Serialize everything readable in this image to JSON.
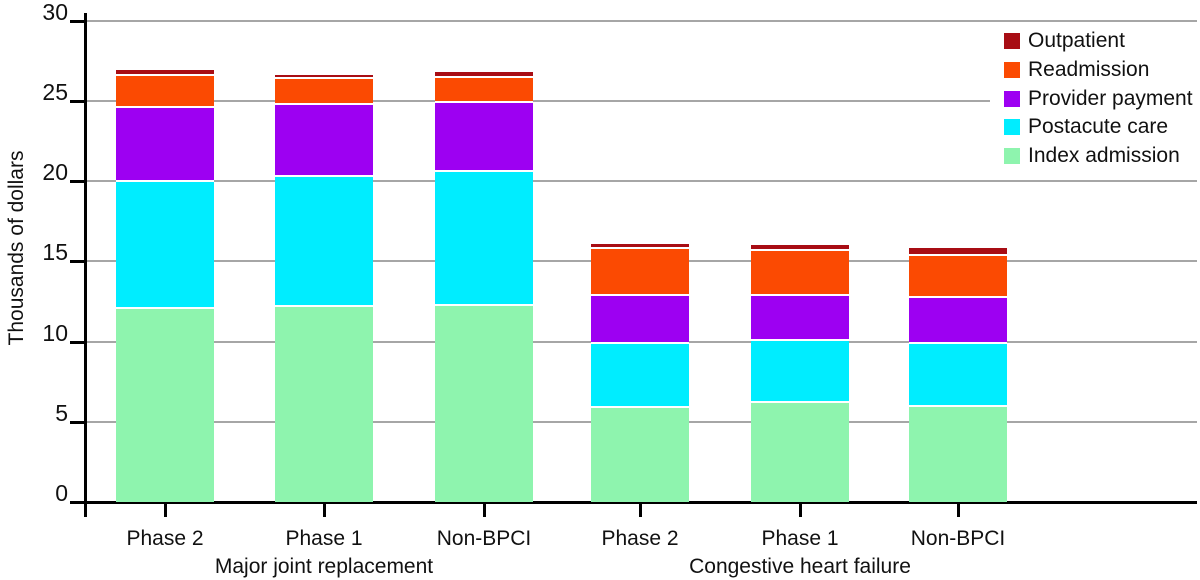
{
  "chart_data": {
    "type": "bar",
    "stacked": true,
    "title": "",
    "ylabel": "Thousands of dollars",
    "ylim": [
      0,
      30
    ],
    "yticks": [
      0,
      5,
      10,
      15,
      20,
      25,
      30
    ],
    "grid": true,
    "legend_position": "top-right",
    "stack_order_bottom_to_top": [
      "Index admission",
      "Postacute care",
      "Provider payment",
      "Readmission",
      "Outpatient"
    ],
    "legend": [
      {
        "label": "Outpatient",
        "color": "#a80d14"
      },
      {
        "label": "Readmission",
        "color": "#fb4a02"
      },
      {
        "label": "Provider payment",
        "color": "#9d00f2"
      },
      {
        "label": "Postacute care",
        "color": "#00edff"
      },
      {
        "label": "Index admission",
        "color": "#8ef4ae"
      }
    ],
    "groups": [
      {
        "label": "Major joint replacement",
        "bars": [
          {
            "label": "Phase 2",
            "values": {
              "Index admission": 12.1,
              "Postacute care": 7.9,
              "Provider payment": 4.6,
              "Readmission": 2.0,
              "Outpatient": 0.3
            }
          },
          {
            "label": "Phase 1",
            "values": {
              "Index admission": 12.2,
              "Postacute care": 8.1,
              "Provider payment": 4.5,
              "Readmission": 1.6,
              "Outpatient": 0.2
            }
          },
          {
            "label": "Non-BPCI",
            "values": {
              "Index admission": 12.3,
              "Postacute care": 8.3,
              "Provider payment": 4.3,
              "Readmission": 1.6,
              "Outpatient": 0.3
            }
          }
        ]
      },
      {
        "label": "Congestive heart failure",
        "bars": [
          {
            "label": "Phase 2",
            "values": {
              "Index admission": 5.9,
              "Postacute care": 4.0,
              "Provider payment": 3.0,
              "Readmission": 2.9,
              "Outpatient": 0.3
            }
          },
          {
            "label": "Phase 1",
            "values": {
              "Index admission": 6.2,
              "Postacute care": 3.9,
              "Provider payment": 2.8,
              "Readmission": 2.8,
              "Outpatient": 0.3
            }
          },
          {
            "label": "Non-BPCI",
            "values": {
              "Index admission": 6.0,
              "Postacute care": 3.9,
              "Provider payment": 2.9,
              "Readmission": 2.6,
              "Outpatient": 0.4
            }
          }
        ]
      }
    ]
  }
}
